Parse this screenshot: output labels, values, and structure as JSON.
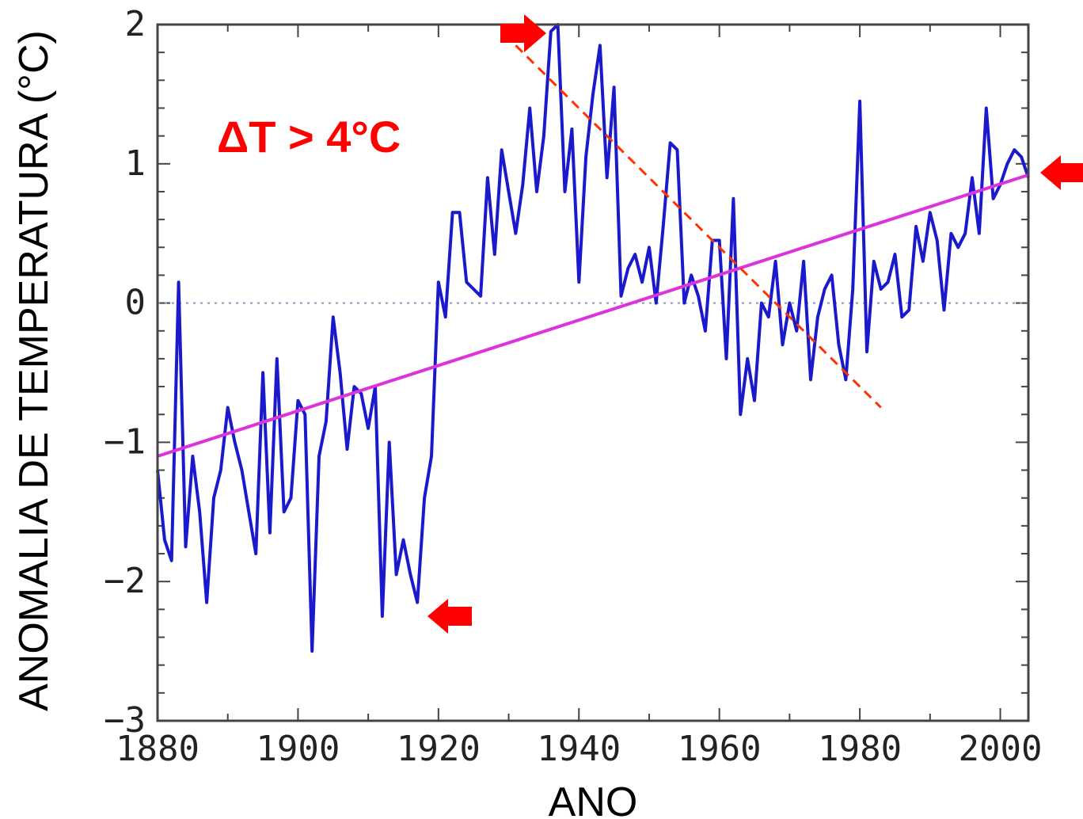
{
  "chart_data": {
    "type": "line",
    "title": "",
    "xlabel": "ANO",
    "ylabel": "ANOMALIA DE TEMPERATURA (°C)",
    "xlim": [
      1880,
      2004
    ],
    "ylim": [
      -3,
      2
    ],
    "x_ticks": [
      1880,
      1900,
      1920,
      1940,
      1960,
      1980,
      2000
    ],
    "x_tick_labels": [
      "1880",
      "1900",
      "1920",
      "1940",
      "1960",
      "1980",
      "2000"
    ],
    "y_ticks": [
      -3,
      -2,
      -1,
      0,
      1,
      2
    ],
    "y_tick_labels": [
      "−3",
      "−2",
      "−1",
      "0",
      "1",
      "2"
    ],
    "grid": false,
    "zero_reference_line": true,
    "annotation": "ΔT > 4°C",
    "colors": {
      "series": "#1a1acc",
      "trend": "#dd33dd",
      "decline": "#ff3300",
      "annotation": "#ff0000",
      "zero_line": "#8899bb",
      "frame": "#444444"
    },
    "series": [
      {
        "x": [
          1880,
          1881,
          1882,
          1883,
          1884,
          1885,
          1886,
          1887,
          1888,
          1889,
          1890,
          1891,
          1892,
          1893,
          1894,
          1895,
          1896,
          1897,
          1898,
          1899,
          1900,
          1901,
          1902,
          1903,
          1904,
          1905,
          1906,
          1907,
          1908,
          1909,
          1910,
          1911,
          1912,
          1913,
          1914,
          1915,
          1916,
          1917,
          1918,
          1919,
          1920,
          1921,
          1922,
          1923,
          1924,
          1925,
          1926,
          1927,
          1928,
          1929,
          1930,
          1931,
          1932,
          1933,
          1934,
          1935,
          1936,
          1937,
          1938,
          1939,
          1940,
          1941,
          1942,
          1943,
          1944,
          1945,
          1946,
          1947,
          1948,
          1949,
          1950,
          1951,
          1952,
          1953,
          1954,
          1955,
          1956,
          1957,
          1958,
          1959,
          1960,
          1961,
          1962,
          1963,
          1964,
          1965,
          1966,
          1967,
          1968,
          1969,
          1970,
          1971,
          1972,
          1973,
          1974,
          1975,
          1976,
          1977,
          1978,
          1979,
          1980,
          1981,
          1982,
          1983,
          1984,
          1985,
          1986,
          1987,
          1988,
          1989,
          1990,
          1991,
          1992,
          1993,
          1994,
          1995,
          1996,
          1997,
          1998,
          1999,
          2000,
          2001,
          2002,
          2003,
          2004
        ],
        "values": [
          -1.2,
          -1.7,
          -1.85,
          0.15,
          -1.75,
          -1.1,
          -1.5,
          -2.15,
          -1.4,
          -1.2,
          -0.75,
          -1.0,
          -1.2,
          -1.5,
          -1.8,
          -0.5,
          -1.65,
          -0.4,
          -1.5,
          -1.4,
          -0.7,
          -0.8,
          -2.5,
          -1.1,
          -0.85,
          -0.1,
          -0.5,
          -1.05,
          -0.6,
          -0.65,
          -0.9,
          -0.6,
          -2.25,
          -1.0,
          -1.95,
          -1.7,
          -1.95,
          -2.15,
          -1.4,
          -1.1,
          0.15,
          -0.1,
          0.65,
          0.65,
          0.15,
          0.1,
          0.05,
          0.9,
          0.35,
          1.1,
          0.8,
          0.5,
          0.85,
          1.4,
          0.8,
          1.2,
          1.95,
          2.0,
          0.8,
          1.25,
          0.15,
          1.05,
          1.5,
          1.85,
          0.9,
          1.55,
          0.05,
          0.25,
          0.35,
          0.15,
          0.4,
          0.0,
          0.55,
          1.15,
          1.1,
          0.0,
          0.2,
          0.05,
          -0.2,
          0.45,
          0.45,
          -0.4,
          0.75,
          -0.8,
          -0.4,
          -0.7,
          0.0,
          -0.1,
          0.3,
          -0.3,
          0.0,
          -0.2,
          0.3,
          -0.55,
          -0.1,
          0.1,
          0.2,
          -0.3,
          -0.55,
          0.1,
          1.45,
          -0.35,
          0.3,
          0.1,
          0.15,
          0.35,
          -0.1,
          -0.05,
          0.55,
          0.3,
          0.65,
          0.45,
          -0.05,
          0.5,
          0.4,
          0.5,
          0.9,
          0.5,
          1.4,
          0.75,
          0.85,
          1.0,
          1.1,
          1.05,
          0.9
        ]
      },
      {
        "x": [
          1880,
          2004
        ],
        "values": [
          -1.1,
          0.92
        ]
      },
      {
        "x": [
          1931,
          1983
        ],
        "values": [
          1.85,
          -0.75
        ]
      }
    ]
  }
}
